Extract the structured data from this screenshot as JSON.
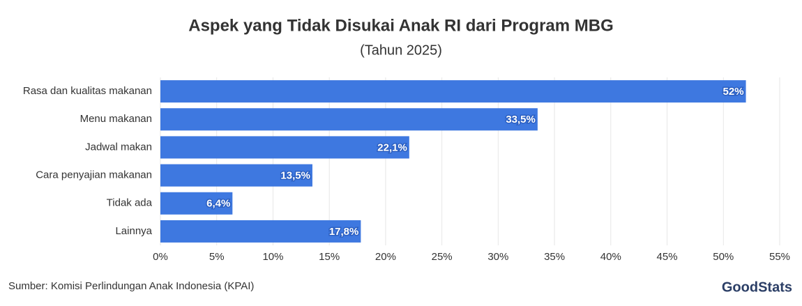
{
  "chart_data": {
    "type": "bar",
    "orientation": "horizontal",
    "title": "Aspek yang Tidak Disukai Anak RI dari Program MBG",
    "subtitle": "(Tahun 2025)",
    "categories": [
      "Rasa dan kualitas makanan",
      "Menu makanan",
      "Jadwal makan",
      "Cara penyajian makanan",
      "Tidak ada",
      "Lainnya"
    ],
    "values": [
      52,
      33.5,
      22.1,
      13.5,
      6.4,
      17.8
    ],
    "value_labels": [
      "52%",
      "33,5%",
      "22,1%",
      "13,5%",
      "6,4%",
      "17,8%"
    ],
    "color": "#3e78e0",
    "xlim": [
      0,
      55
    ],
    "xticks": [
      {
        "value": 0,
        "label": "0%"
      },
      {
        "value": 5,
        "label": "5%"
      },
      {
        "value": 10,
        "label": "10%"
      },
      {
        "value": 15,
        "label": "15%"
      },
      {
        "value": 20,
        "label": "20%"
      },
      {
        "value": 25,
        "label": "25%"
      },
      {
        "value": 30,
        "label": "30%"
      },
      {
        "value": 35,
        "label": "35%"
      },
      {
        "value": 40,
        "label": "40%"
      },
      {
        "value": 45,
        "label": "45%"
      },
      {
        "value": 50,
        "label": "50%"
      },
      {
        "value": 55,
        "label": "55%"
      }
    ],
    "grid": true,
    "source": "Sumber: Komisi Perlindungan Anak Indonesia (KPAI)",
    "brand": "GoodStats"
  }
}
